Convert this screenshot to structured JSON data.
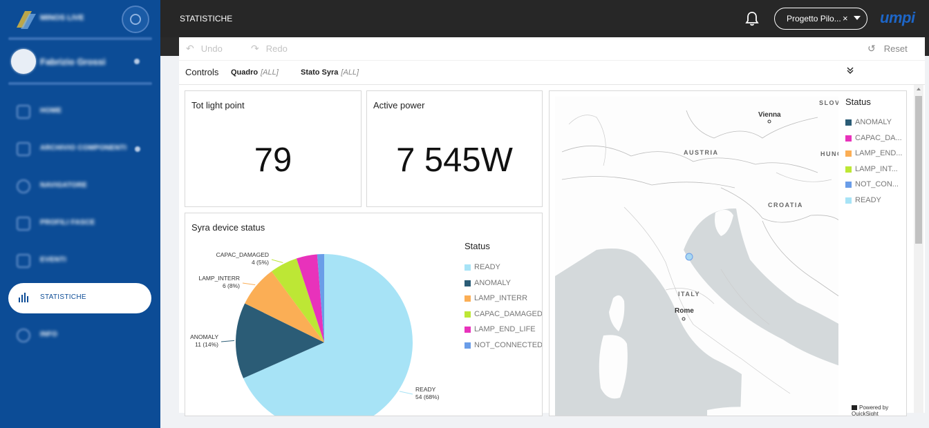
{
  "sidebar": {
    "brand": "MINOS LIVE",
    "user": "Fabrizio Grossi",
    "items": [
      {
        "label": "HOME"
      },
      {
        "label": "ARCHIVIO COMPONENTI"
      },
      {
        "label": "NAVIGATORE"
      },
      {
        "label": "PROFILI FASCE"
      },
      {
        "label": "EVENTI"
      },
      {
        "label": "STATISTICHE"
      },
      {
        "label": "INFO"
      }
    ]
  },
  "topbar": {
    "title": "STATISTICHE",
    "project": "Progetto Pilo...",
    "clear": "×",
    "logo": "umpi"
  },
  "toolbar": {
    "undo": "Undo",
    "redo": "Redo",
    "reset": "Reset"
  },
  "controls": {
    "title": "Controls",
    "filters": [
      {
        "name": "Quadro",
        "value": "[ALL]"
      },
      {
        "name": "Stato Syra",
        "value": "[ALL]"
      }
    ]
  },
  "kpis": [
    {
      "title": "Tot light point",
      "value": "79"
    },
    {
      "title": "Active power",
      "value": "7 545W"
    }
  ],
  "pie_panel": {
    "title": "Syra device status",
    "legend_title": "Status",
    "legend": [
      "READY",
      "ANOMALY",
      "LAMP_INTERR",
      "CAPAC_DAMAGED",
      "LAMP_END_LIFE",
      "NOT_CONNECTED"
    ]
  },
  "chart_data": {
    "type": "pie",
    "title": "Syra device status",
    "slices": [
      {
        "label": "READY",
        "value": 54,
        "percent": "68%",
        "color": "#a7e3f6"
      },
      {
        "label": "ANOMALY",
        "value": 11,
        "percent": "14%",
        "color": "#2b5c76"
      },
      {
        "label": "LAMP_INTERR",
        "value": 6,
        "percent": "8%",
        "color": "#fbae55"
      },
      {
        "label": "CAPAC_DAMAGED",
        "value": 4,
        "percent": "5%",
        "color": "#bde735"
      },
      {
        "label": "LAMP_END_LIFE",
        "value": 3,
        "percent": "",
        "color": "#e832bb"
      },
      {
        "label": "NOT_CONNECTED",
        "value": 1,
        "percent": "",
        "color": "#6a9de8"
      }
    ],
    "data_labels": [
      {
        "name": "READY",
        "count": "54 (68%)"
      },
      {
        "name": "ANOMALY",
        "count": "11 (14%)"
      },
      {
        "name": "LAMP_INTERR",
        "count": "6 (8%)"
      },
      {
        "name": "CAPAC_DAMAGED",
        "count": "4 (5%)"
      }
    ]
  },
  "map": {
    "legend_title": "Status",
    "legend": [
      {
        "label": "ANOMALY",
        "color": "#2b5c76"
      },
      {
        "label": "CAPAC_DA...",
        "color": "#e832bb"
      },
      {
        "label": "LAMP_END...",
        "color": "#fbae55"
      },
      {
        "label": "LAMP_INT...",
        "color": "#bde735"
      },
      {
        "label": "NOT_CON...",
        "color": "#6a9de8"
      },
      {
        "label": "READY",
        "color": "#a7e3f6"
      }
    ],
    "countries": [
      "AUSTRIA",
      "CROATIA",
      "ITALY",
      "SLOV",
      "HUNG"
    ],
    "cities": [
      "Vienna",
      "Rome"
    ],
    "credit": "Powered by QuickSight"
  }
}
